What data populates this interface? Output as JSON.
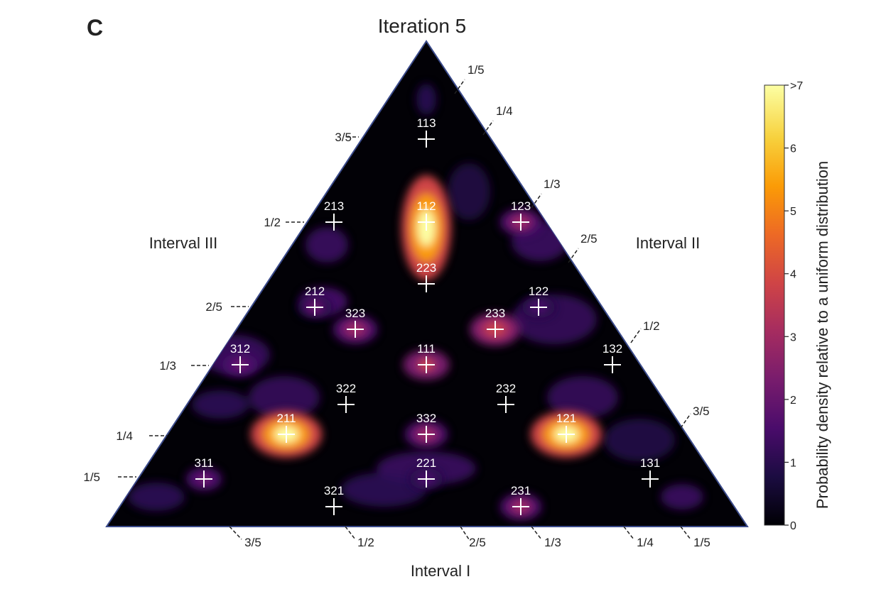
{
  "panel_label": "C",
  "chart_data": {
    "type": "heatmap",
    "subtype": "ternary-density",
    "title": "Iteration 5",
    "axes": {
      "bottom": {
        "label": "Interval I",
        "ticks": [
          "3/5",
          "1/2",
          "2/5",
          "1/3",
          "1/4",
          "1/5"
        ]
      },
      "left": {
        "label": "Interval III",
        "ticks": [
          "3/5",
          "1/2",
          "2/5",
          "1/3",
          "1/4",
          "1/5"
        ]
      },
      "right": {
        "label": "Interval II",
        "ticks": [
          "1/5",
          "1/4",
          "1/3",
          "2/5",
          "1/2",
          "3/5"
        ]
      }
    },
    "colorbar": {
      "label": "Probability density relative to a uniform distribution",
      "ticks": [
        "0",
        "1",
        "2",
        "3",
        "4",
        "5",
        "6",
        ">7"
      ],
      "range": [
        0,
        7
      ],
      "colormap": [
        "#000004",
        "#1b0c41",
        "#4a0c6b",
        "#781c6d",
        "#a52c60",
        "#cf4446",
        "#ed6925",
        "#fb9b06",
        "#f7d13d",
        "#fcffa4"
      ]
    },
    "points": [
      {
        "label": "113",
        "density": 0.3
      },
      {
        "label": "213",
        "density": 0.8
      },
      {
        "label": "112",
        "density": 7.0
      },
      {
        "label": "123",
        "density": 3.0
      },
      {
        "label": "223",
        "density": 0.6
      },
      {
        "label": "212",
        "density": 2.0
      },
      {
        "label": "323",
        "density": 3.4
      },
      {
        "label": "122",
        "density": 1.8
      },
      {
        "label": "233",
        "density": 4.2
      },
      {
        "label": "312",
        "density": 2.2
      },
      {
        "label": "111",
        "density": 3.6
      },
      {
        "label": "132",
        "density": 0.8
      },
      {
        "label": "322",
        "density": 0.8
      },
      {
        "label": "232",
        "density": 0.9
      },
      {
        "label": "211",
        "density": 7.0
      },
      {
        "label": "332",
        "density": 3.2
      },
      {
        "label": "121",
        "density": 7.0
      },
      {
        "label": "311",
        "density": 2.2
      },
      {
        "label": "221",
        "density": 1.8
      },
      {
        "label": "131",
        "density": 1.0
      },
      {
        "label": "321",
        "density": 1.0
      },
      {
        "label": "231",
        "density": 3.0
      }
    ]
  }
}
